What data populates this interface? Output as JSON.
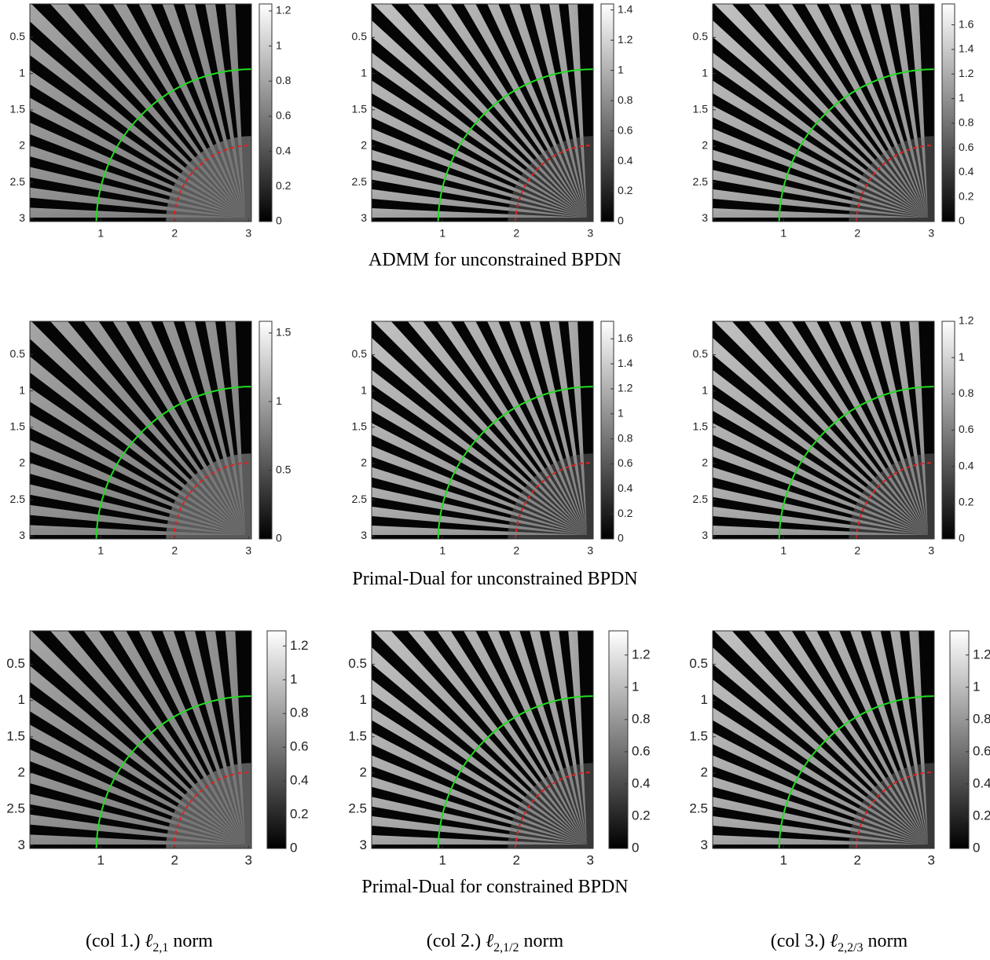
{
  "chart_data": [
    {
      "type": "image",
      "colormap": "gray",
      "y_reversed": true,
      "xlim": [
        0.04,
        3.04
      ],
      "ylim": [
        0.04,
        3.04
      ],
      "xticks": [
        1,
        2,
        3
      ],
      "yticks": [
        0.5,
        1,
        1.5,
        2,
        2.5,
        3
      ],
      "clim": [
        0,
        1.24
      ],
      "cticks": [
        0,
        0.2,
        0.4,
        0.6,
        0.8,
        1,
        1.2
      ]
    },
    {
      "type": "image",
      "colormap": "gray",
      "y_reversed": true,
      "xlim": [
        0.04,
        3.04
      ],
      "ylim": [
        0.04,
        3.04
      ],
      "xticks": [
        1,
        2,
        3
      ],
      "yticks": [
        0.5,
        1,
        1.5,
        2,
        2.5,
        3
      ],
      "clim": [
        0,
        1.44
      ],
      "cticks": [
        0,
        0.2,
        0.4,
        0.6,
        0.8,
        1,
        1.2,
        1.4
      ]
    },
    {
      "type": "image",
      "colormap": "gray",
      "y_reversed": true,
      "xlim": [
        0.04,
        3.04
      ],
      "ylim": [
        0.04,
        3.04
      ],
      "xticks": [
        1,
        2,
        3
      ],
      "yticks": [
        0.5,
        1,
        1.5,
        2,
        2.5,
        3
      ],
      "clim": [
        0,
        1.77
      ],
      "cticks": [
        0,
        0.2,
        0.4,
        0.6,
        0.8,
        1,
        1.2,
        1.4,
        1.6
      ]
    },
    {
      "type": "image",
      "colormap": "gray",
      "y_reversed": true,
      "xlim": [
        0.04,
        3.04
      ],
      "ylim": [
        0.04,
        3.04
      ],
      "xticks": [
        1,
        2,
        3
      ],
      "yticks": [
        0.5,
        1,
        1.5,
        2,
        2.5,
        3
      ],
      "clim": [
        0,
        1.585
      ],
      "cticks": [
        0,
        0.5,
        1,
        1.5
      ]
    },
    {
      "type": "image",
      "colormap": "gray",
      "y_reversed": true,
      "xlim": [
        0.04,
        3.04
      ],
      "ylim": [
        0.04,
        3.04
      ],
      "xticks": [
        1,
        2,
        3
      ],
      "yticks": [
        0.5,
        1,
        1.5,
        2,
        2.5,
        3
      ],
      "clim": [
        0,
        1.74
      ],
      "cticks": [
        0,
        0.2,
        0.4,
        0.6,
        0.8,
        1,
        1.2,
        1.4,
        1.6
      ]
    },
    {
      "type": "image",
      "colormap": "gray",
      "y_reversed": true,
      "xlim": [
        0.04,
        3.04
      ],
      "ylim": [
        0.04,
        3.04
      ],
      "xticks": [
        1,
        2,
        3
      ],
      "yticks": [
        0.5,
        1,
        1.5,
        2,
        2.5,
        3
      ],
      "clim": [
        0,
        1.2
      ],
      "cticks": [
        0,
        0.2,
        0.4,
        0.6,
        0.8,
        1,
        1.2
      ]
    },
    {
      "type": "image",
      "colormap": "gray",
      "y_reversed": true,
      "xlim": [
        0.04,
        3.04
      ],
      "ylim": [
        0.04,
        3.04
      ],
      "xticks": [
        1,
        2,
        3
      ],
      "yticks": [
        0.5,
        1,
        1.5,
        2,
        2.5,
        3
      ],
      "clim": [
        0,
        1.29
      ],
      "cticks": [
        0,
        0.2,
        0.4,
        0.6,
        0.8,
        1,
        1.2
      ]
    },
    {
      "type": "image",
      "colormap": "gray",
      "y_reversed": true,
      "xlim": [
        0.04,
        3.04
      ],
      "ylim": [
        0.04,
        3.04
      ],
      "xticks": [
        1,
        2,
        3
      ],
      "yticks": [
        0.5,
        1,
        1.5,
        2,
        2.5,
        3
      ],
      "clim": [
        0,
        1.35
      ],
      "cticks": [
        0,
        0.2,
        0.4,
        0.6,
        0.8,
        1,
        1.2
      ]
    },
    {
      "type": "image",
      "colormap": "gray",
      "y_reversed": true,
      "xlim": [
        0.04,
        3.04
      ],
      "ylim": [
        0.04,
        3.04
      ],
      "xticks": [
        1,
        2,
        3
      ],
      "yticks": [
        0.5,
        1,
        1.5,
        2,
        2.5,
        3
      ],
      "clim": [
        0,
        1.35
      ],
      "cticks": [
        0,
        0.2,
        0.4,
        0.6,
        0.8,
        1,
        1.2
      ]
    }
  ],
  "row_captions": [
    "ADMM for unconstrained BPDN",
    "Primal-Dual for unconstrained BPDN",
    "Primal-Dual for constrained BPDN"
  ],
  "col_captions": [
    {
      "prefix": "(col 1.)",
      "symbol": "ℓ",
      "subscript": "2,1",
      "suffix": "norm"
    },
    {
      "prefix": "(col 2.)",
      "symbol": "ℓ",
      "subscript": "2,1/2",
      "suffix": "norm"
    },
    {
      "prefix": "(col 3.)",
      "symbol": "ℓ",
      "subscript": "2,2/3",
      "suffix": "norm"
    }
  ]
}
